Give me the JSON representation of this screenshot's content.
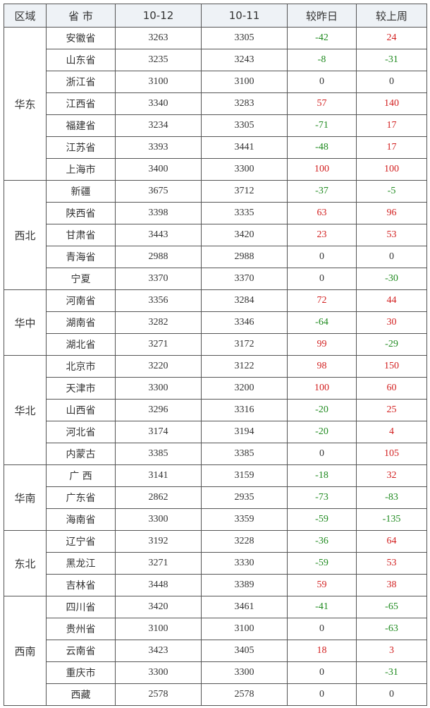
{
  "colors": {
    "positive": "#d21f1f",
    "negative": "#1f8a1f",
    "header_bg": "#eef2f6"
  },
  "headers": [
    "区域",
    "省 市",
    "10-12",
    "10-11",
    "较昨日",
    "较上周"
  ],
  "regions": [
    {
      "name": "华东",
      "rows": [
        [
          "安徽省",
          "3263",
          "3305",
          "-42",
          "24"
        ],
        [
          "山东省",
          "3235",
          "3243",
          "-8",
          "-31"
        ],
        [
          "浙江省",
          "3100",
          "3100",
          "0",
          "0"
        ],
        [
          "江西省",
          "3340",
          "3283",
          "57",
          "140"
        ],
        [
          "福建省",
          "3234",
          "3305",
          "-71",
          "17"
        ],
        [
          "江苏省",
          "3393",
          "3441",
          "-48",
          "17"
        ],
        [
          "上海市",
          "3400",
          "3300",
          "100",
          "100"
        ]
      ]
    },
    {
      "name": "西北",
      "rows": [
        [
          "新疆",
          "3675",
          "3712",
          "-37",
          "-5"
        ],
        [
          "陕西省",
          "3398",
          "3335",
          "63",
          "96"
        ],
        [
          "甘肃省",
          "3443",
          "3420",
          "23",
          "53"
        ],
        [
          "青海省",
          "2988",
          "2988",
          "0",
          "0"
        ],
        [
          "宁夏",
          "3370",
          "3370",
          "0",
          "-30"
        ]
      ]
    },
    {
      "name": "华中",
      "rows": [
        [
          "河南省",
          "3356",
          "3284",
          "72",
          "44"
        ],
        [
          "湖南省",
          "3282",
          "3346",
          "-64",
          "30"
        ],
        [
          "湖北省",
          "3271",
          "3172",
          "99",
          "-29"
        ]
      ]
    },
    {
      "name": "华北",
      "rows": [
        [
          "北京市",
          "3220",
          "3122",
          "98",
          "150"
        ],
        [
          "天津市",
          "3300",
          "3200",
          "100",
          "60"
        ],
        [
          "山西省",
          "3296",
          "3316",
          "-20",
          "25"
        ],
        [
          "河北省",
          "3174",
          "3194",
          "-20",
          "4"
        ],
        [
          "内蒙古",
          "3385",
          "3385",
          "0",
          "105"
        ]
      ]
    },
    {
      "name": "华南",
      "rows": [
        [
          "广 西",
          "3141",
          "3159",
          "-18",
          "32"
        ],
        [
          "广东省",
          "2862",
          "2935",
          "-73",
          "-83"
        ],
        [
          "海南省",
          "3300",
          "3359",
          "-59",
          "-135"
        ]
      ]
    },
    {
      "name": "东北",
      "rows": [
        [
          "辽宁省",
          "3192",
          "3228",
          "-36",
          "64"
        ],
        [
          "黑龙江",
          "3271",
          "3330",
          "-59",
          "53"
        ],
        [
          "吉林省",
          "3448",
          "3389",
          "59",
          "38"
        ]
      ]
    },
    {
      "name": "西南",
      "rows": [
        [
          "四川省",
          "3420",
          "3461",
          "-41",
          "-65"
        ],
        [
          "贵州省",
          "3100",
          "3100",
          "0",
          "-63"
        ],
        [
          "云南省",
          "3423",
          "3405",
          "18",
          "3"
        ],
        [
          "重庆市",
          "3300",
          "3300",
          "0",
          "-31"
        ],
        [
          "西藏",
          "2578",
          "2578",
          "0",
          "0"
        ]
      ]
    }
  ]
}
